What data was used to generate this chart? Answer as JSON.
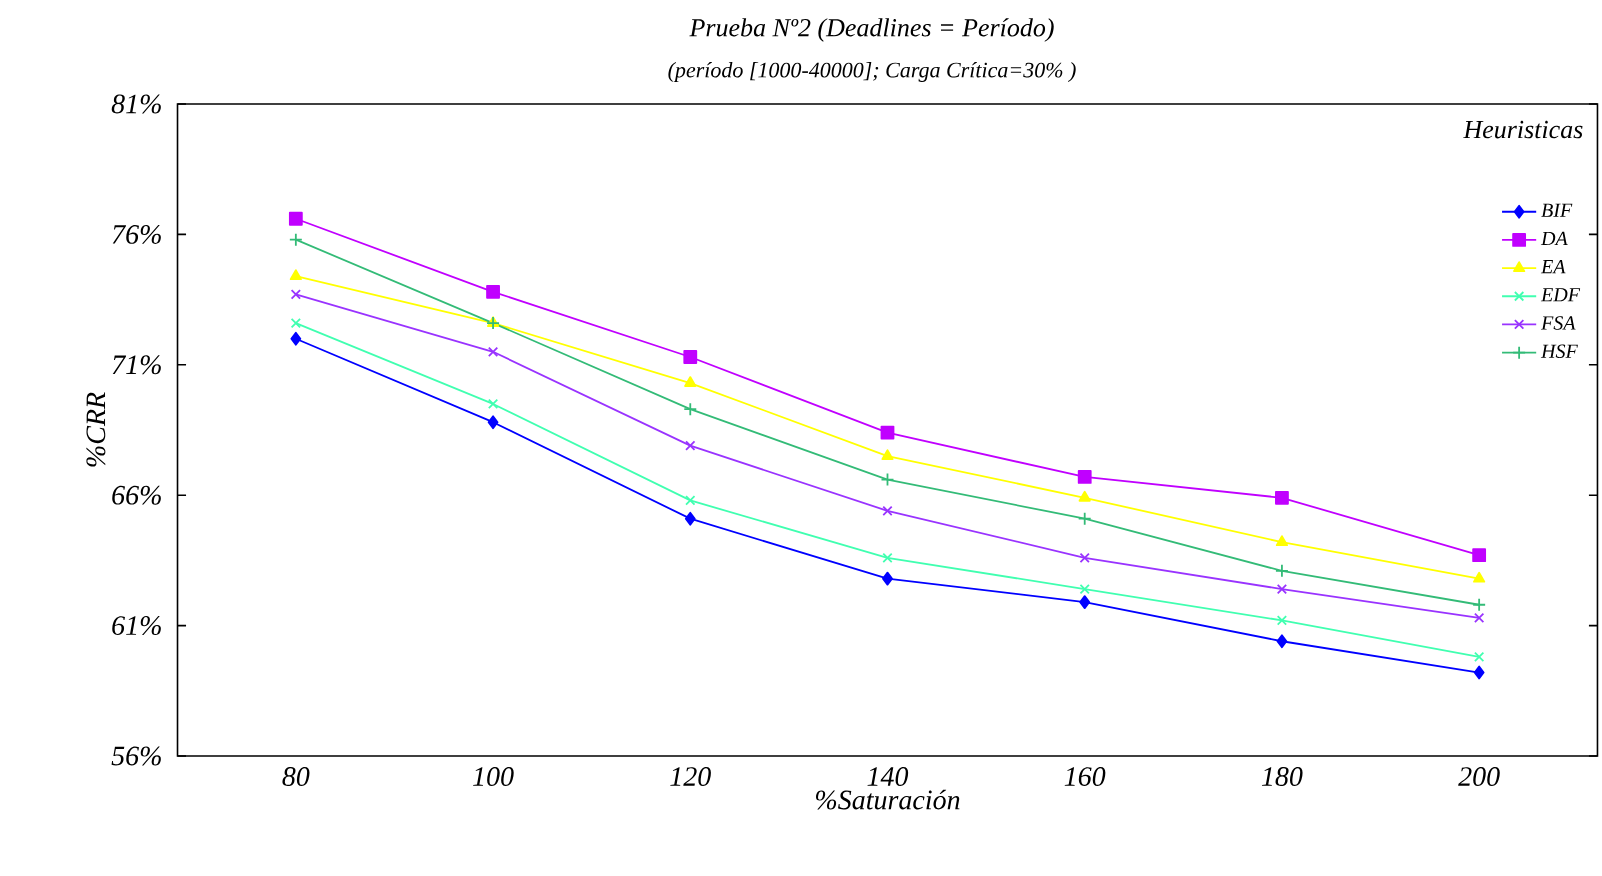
{
  "chart_data": {
    "type": "line",
    "title": "Prueba Nº2 (Deadlines = Período)",
    "subtitle": "(período   [1000-40000]; Carga Crítica=30% )",
    "xlabel": "%Saturación",
    "ylabel": "%CRR",
    "legend_title": "Heuristicas",
    "legend": "top right",
    "grid": false,
    "categories": [
      "80",
      "100",
      "120",
      "140",
      "160",
      "180",
      "200"
    ],
    "ylim": [
      56,
      81
    ],
    "yticks": [
      {
        "value": 56,
        "label": "56%"
      },
      {
        "value": 61,
        "label": "61%"
      },
      {
        "value": 66,
        "label": "66%"
      },
      {
        "value": 71,
        "label": "71%"
      },
      {
        "value": 76,
        "label": "76%"
      },
      {
        "value": 81,
        "label": "81%"
      }
    ],
    "series": [
      {
        "name": "BIF",
        "color": "#0000ff",
        "marker": "diamond",
        "values": [
          72.0,
          68.8,
          65.1,
          62.8,
          61.9,
          60.4,
          59.2
        ]
      },
      {
        "name": "DA",
        "color": "#c000ff",
        "marker": "square",
        "values": [
          76.6,
          73.8,
          71.3,
          68.4,
          66.7,
          65.9,
          63.7
        ]
      },
      {
        "name": "EA",
        "color": "#ffff00",
        "marker": "triangle",
        "values": [
          74.4,
          72.6,
          70.3,
          67.5,
          65.9,
          64.2,
          62.8
        ]
      },
      {
        "name": "EDF",
        "color": "#40ffb0",
        "marker": "cross",
        "values": [
          72.6,
          69.5,
          65.8,
          63.6,
          62.4,
          61.2,
          59.8
        ]
      },
      {
        "name": "FSA",
        "color": "#9933ff",
        "marker": "cross",
        "values": [
          73.7,
          71.5,
          67.9,
          65.4,
          63.6,
          62.4,
          61.3
        ]
      },
      {
        "name": "HSF",
        "color": "#33bb77",
        "marker": "plus",
        "values": [
          75.8,
          72.6,
          69.3,
          66.6,
          65.1,
          63.1,
          61.8
        ]
      }
    ]
  }
}
